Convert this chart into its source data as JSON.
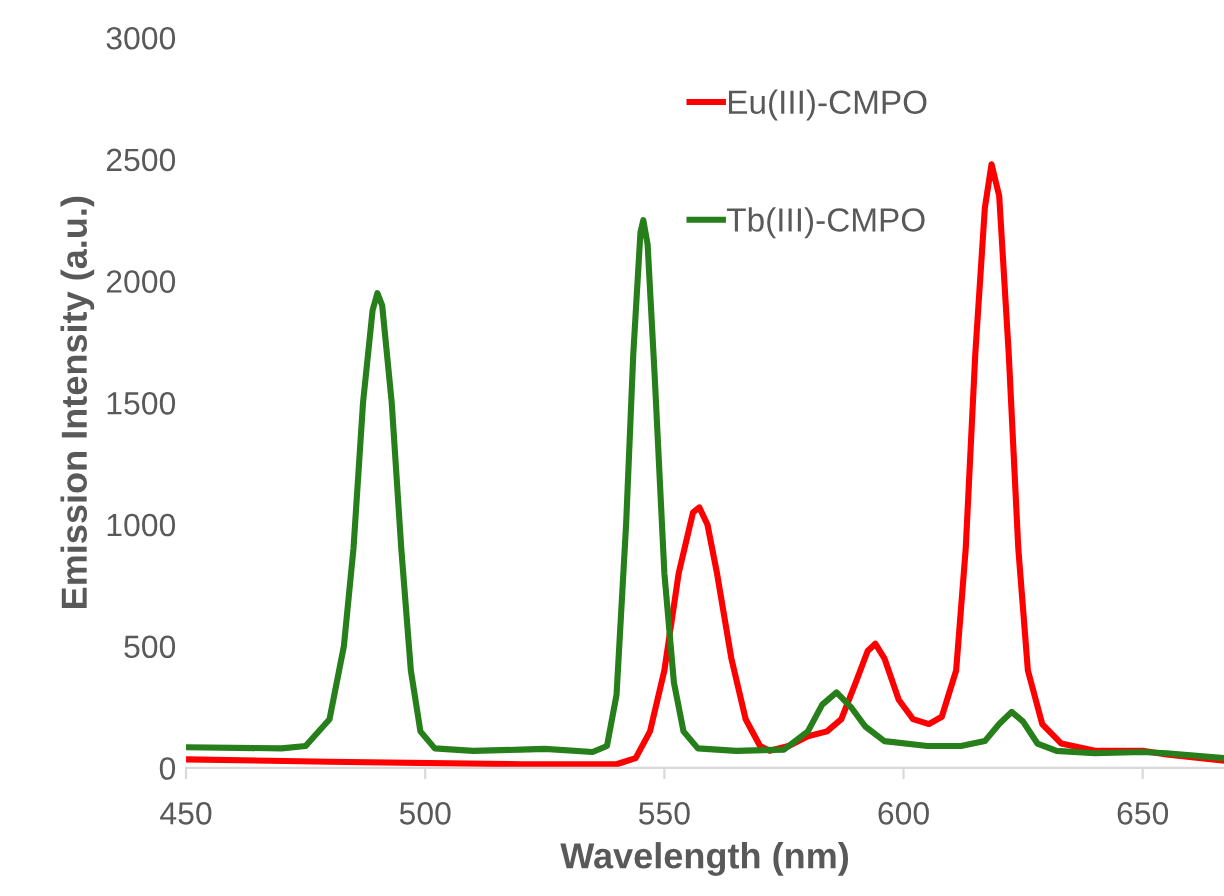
{
  "chart_data": {
    "type": "line",
    "xlabel": "Wavelength (nm)",
    "ylabel": "Emission Intensity (a.u.)",
    "xlim": [
      450,
      667
    ],
    "xticks": [
      450,
      500,
      550,
      600,
      650
    ],
    "ylim": [
      0,
      3000
    ],
    "yticks": [
      0,
      500,
      1000,
      1500,
      2000,
      2500,
      3000
    ],
    "grid": false,
    "legend": "top",
    "marker": "none",
    "line_style": "solid",
    "series": [
      {
        "name": "Eu(III)-CMPO",
        "color": "#ff0000",
        "x": [
          450,
          480,
          520,
          540,
          544,
          547,
          550,
          553,
          556,
          557.3,
          559,
          561,
          564,
          567,
          570,
          572,
          576,
          580,
          584,
          587,
          590,
          592.5,
          594.1,
          596,
          599,
          602,
          605.3,
          608,
          611,
          613,
          615,
          617,
          618.4,
          620,
          622,
          624,
          626,
          629,
          633,
          640,
          650,
          655,
          667
        ],
        "values": [
          35,
          25,
          15,
          15,
          40,
          150,
          400,
          800,
          1050,
          1070,
          1000,
          800,
          450,
          200,
          90,
          70,
          90,
          130,
          150,
          200,
          350,
          480,
          510,
          450,
          280,
          200,
          180,
          210,
          400,
          900,
          1700,
          2300,
          2480,
          2350,
          1700,
          900,
          400,
          180,
          100,
          70,
          70,
          55,
          30
        ]
      },
      {
        "name": "Tb(III)-CMPO",
        "color": "#267f1a",
        "x": [
          450,
          470,
          475,
          480,
          483,
          485,
          487,
          489,
          490,
          491,
          493,
          495,
          497,
          499,
          502,
          510,
          520,
          525,
          535,
          538,
          540,
          542,
          543.5,
          545,
          545.6,
          546.5,
          548,
          550,
          552,
          554,
          557,
          565,
          575,
          580,
          583,
          586,
          589,
          592,
          596,
          605,
          612,
          617,
          620,
          622.6,
          625,
          628,
          632,
          640,
          650,
          655,
          667
        ],
        "values": [
          85,
          80,
          90,
          200,
          500,
          900,
          1500,
          1880,
          1950,
          1900,
          1500,
          900,
          400,
          150,
          80,
          70,
          75,
          78,
          65,
          90,
          300,
          1000,
          1700,
          2200,
          2250,
          2150,
          1600,
          800,
          350,
          150,
          80,
          70,
          75,
          150,
          260,
          310,
          250,
          170,
          110,
          90,
          90,
          110,
          180,
          230,
          190,
          100,
          70,
          60,
          65,
          60,
          40
        ]
      }
    ]
  }
}
